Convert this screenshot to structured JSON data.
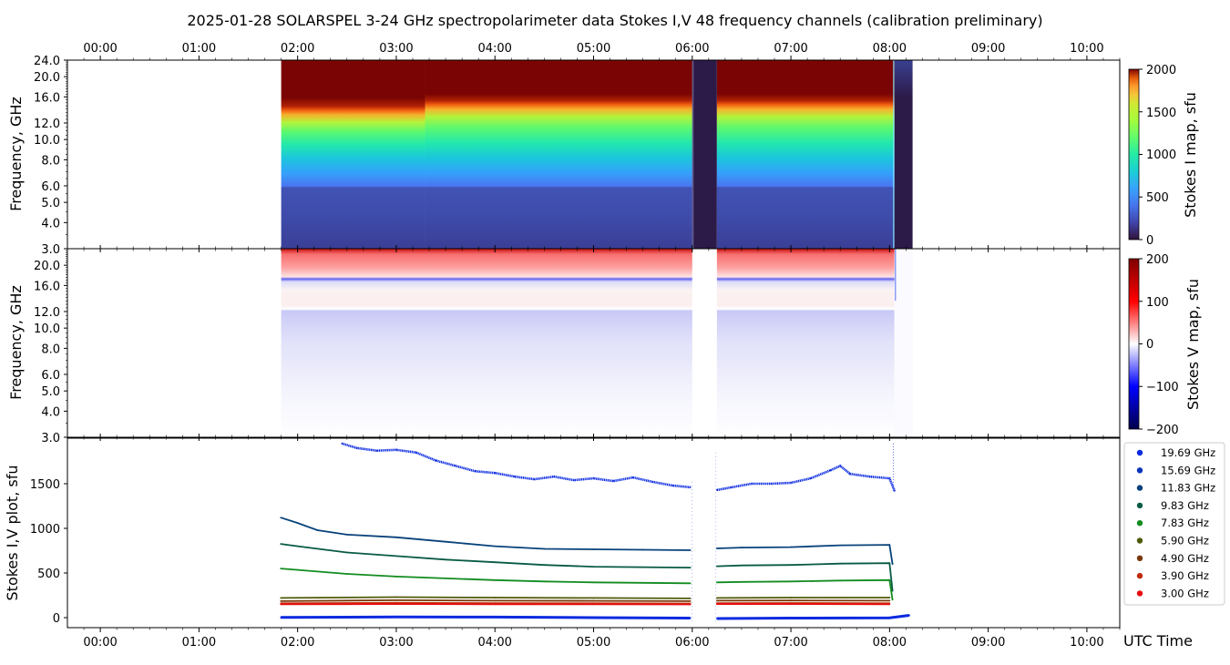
{
  "figure": {
    "title": "2025-01-28  SOLARSPEL  3-24 GHz spectropolarimeter data   Stokes I,V   48 frequency channels   (calibration preliminary)",
    "x_axis_label": "UTC Time",
    "time_ticks": [
      "00:00",
      "01:00",
      "02:00",
      "03:00",
      "04:00",
      "05:00",
      "06:00",
      "07:00",
      "08:00",
      "09:00",
      "10:00"
    ]
  },
  "panels": {
    "stokes_i": {
      "ylabel": "Frequency, GHz",
      "colorbar_label": "Stokes I map, sfu",
      "colorbar_ticks": [
        "2000",
        "1500",
        "1000",
        "500",
        "0"
      ]
    },
    "stokes_v": {
      "ylabel": "Frequency, GHz",
      "colorbar_label": "Stokes V map, sfu",
      "colorbar_ticks": [
        "200",
        "100",
        "0",
        "−100",
        "−200"
      ]
    },
    "plot": {
      "ylabel": "Stokes I,V plot, sfu"
    }
  },
  "freq_tick_labels": [
    "24.0",
    "20.0",
    "16.0",
    "12.0",
    "10.0",
    "8.0",
    "6.0",
    "5.0",
    "4.0",
    "3.0"
  ],
  "plot_tick_labels": [
    "1500",
    "1000",
    "500",
    "0"
  ],
  "chart_data": [
    {
      "type": "heatmap",
      "title": "Stokes I map",
      "x_range": [
        "23:40",
        "10:20"
      ],
      "y_range_ghz": [
        3.0,
        24.0
      ],
      "y_scale": "log",
      "color_range_sfu": [
        0,
        2000
      ],
      "colormap": "turbo",
      "observation_start": "01:50",
      "observation_end": "08:14",
      "gaps": [
        [
          "06:00",
          "06:15"
        ],
        [
          "08:03",
          "08:14"
        ]
      ],
      "saturation_level_ghz": [
        [
          "01:50",
          14.0
        ],
        [
          "03:00",
          15.0
        ],
        [
          "05:00",
          15.5
        ],
        [
          "08:00",
          16.0
        ]
      ]
    },
    {
      "type": "heatmap",
      "title": "Stokes V map",
      "x_range": [
        "23:40",
        "10:20"
      ],
      "y_range_ghz": [
        3.0,
        24.0
      ],
      "y_scale": "log",
      "color_range_sfu": [
        -200,
        200
      ],
      "colormap": "seismic",
      "positive_band_ghz": [
        19.0,
        24.0
      ],
      "negative_band_ghz": [
        10.5,
        12.5
      ]
    },
    {
      "type": "scatter",
      "title": "Stokes I,V plot",
      "ylabel": "Stokes I,V plot, sfu",
      "ylim": [
        -100,
        1950
      ],
      "x_unit": "UTC hours",
      "legend_position": "right",
      "series": [
        {
          "name": "19.69 GHz",
          "color": "#0a2ae0",
          "points": [
            [
              2.45,
              1950
            ],
            [
              2.6,
              1900
            ],
            [
              2.8,
              1870
            ],
            [
              3.0,
              1880
            ],
            [
              3.2,
              1850
            ],
            [
              3.4,
              1760
            ],
            [
              3.6,
              1700
            ],
            [
              3.8,
              1640
            ],
            [
              4.0,
              1620
            ],
            [
              4.2,
              1580
            ],
            [
              4.4,
              1550
            ],
            [
              4.6,
              1580
            ],
            [
              4.8,
              1540
            ],
            [
              5.0,
              1560
            ],
            [
              5.2,
              1530
            ],
            [
              5.4,
              1570
            ],
            [
              5.6,
              1520
            ],
            [
              5.8,
              1480
            ],
            [
              5.98,
              1460
            ],
            [
              6.25,
              1430
            ],
            [
              6.4,
              1460
            ],
            [
              6.6,
              1500
            ],
            [
              6.8,
              1500
            ],
            [
              7.0,
              1510
            ],
            [
              7.2,
              1560
            ],
            [
              7.4,
              1650
            ],
            [
              7.5,
              1700
            ],
            [
              7.6,
              1610
            ],
            [
              7.8,
              1580
            ],
            [
              8.0,
              1560
            ],
            [
              8.05,
              1420
            ]
          ]
        },
        {
          "name": "15.69 GHz",
          "color": "#0a34b8",
          "points": []
        },
        {
          "name": "11.83 GHz",
          "color": "#08427a",
          "points": [
            [
              1.83,
              1120
            ],
            [
              2.0,
              1060
            ],
            [
              2.2,
              980
            ],
            [
              2.5,
              930
            ],
            [
              3.0,
              900
            ],
            [
              3.5,
              850
            ],
            [
              4.0,
              800
            ],
            [
              4.5,
              770
            ],
            [
              5.0,
              765
            ],
            [
              5.5,
              760
            ],
            [
              5.98,
              755
            ],
            [
              6.25,
              775
            ],
            [
              6.5,
              785
            ],
            [
              7.0,
              790
            ],
            [
              7.5,
              810
            ],
            [
              8.0,
              815
            ],
            [
              8.03,
              600
            ]
          ]
        },
        {
          "name": "9.83 GHz",
          "color": "#085a44",
          "points": [
            [
              1.83,
              825
            ],
            [
              2.0,
              800
            ],
            [
              2.5,
              730
            ],
            [
              3.0,
              690
            ],
            [
              3.5,
              650
            ],
            [
              4.0,
              620
            ],
            [
              4.5,
              590
            ],
            [
              5.0,
              570
            ],
            [
              5.5,
              565
            ],
            [
              5.98,
              560
            ],
            [
              6.25,
              575
            ],
            [
              6.5,
              585
            ],
            [
              7.0,
              590
            ],
            [
              7.5,
              605
            ],
            [
              8.0,
              610
            ],
            [
              8.03,
              300
            ]
          ]
        },
        {
          "name": "7.83 GHz",
          "color": "#128c20",
          "points": [
            [
              1.83,
              550
            ],
            [
              2.0,
              535
            ],
            [
              2.5,
              490
            ],
            [
              3.0,
              460
            ],
            [
              3.5,
              440
            ],
            [
              4.0,
              420
            ],
            [
              4.5,
              405
            ],
            [
              5.0,
              395
            ],
            [
              5.5,
              390
            ],
            [
              5.98,
              385
            ],
            [
              6.25,
              395
            ],
            [
              6.5,
              400
            ],
            [
              7.0,
              405
            ],
            [
              7.5,
              415
            ],
            [
              8.0,
              420
            ],
            [
              8.03,
              200
            ]
          ]
        },
        {
          "name": "5.90 GHz",
          "color": "#4f5a08",
          "points": [
            [
              1.83,
              220
            ],
            [
              3.0,
              230
            ],
            [
              4.0,
              225
            ],
            [
              5.0,
              220
            ],
            [
              5.98,
              215
            ],
            [
              6.25,
              220
            ],
            [
              7.0,
              225
            ],
            [
              8.0,
              225
            ]
          ]
        },
        {
          "name": "4.90 GHz",
          "color": "#7a3808",
          "points": [
            [
              1.83,
              185
            ],
            [
              3.0,
              195
            ],
            [
              4.0,
              190
            ],
            [
              5.0,
              188
            ],
            [
              5.98,
              185
            ],
            [
              6.25,
              190
            ],
            [
              7.0,
              192
            ],
            [
              8.0,
              190
            ]
          ]
        },
        {
          "name": "3.90 GHz",
          "color": "#c02a08",
          "points": [
            [
              1.83,
              160
            ],
            [
              3.0,
              165
            ],
            [
              4.0,
              162
            ],
            [
              5.0,
              160
            ],
            [
              5.98,
              158
            ],
            [
              6.25,
              162
            ],
            [
              7.0,
              163
            ],
            [
              8.0,
              160
            ]
          ]
        },
        {
          "name": "3.00 GHz",
          "color": "#e80c0c",
          "points": [
            [
              1.83,
              150
            ],
            [
              3.0,
              152
            ],
            [
              4.0,
              150
            ],
            [
              5.0,
              150
            ],
            [
              5.98,
              148
            ],
            [
              6.25,
              152
            ],
            [
              7.0,
              152
            ],
            [
              8.0,
              150
            ]
          ]
        },
        {
          "name": "Stokes V",
          "color": "#0a2ae0",
          "points": [
            [
              1.83,
              2
            ],
            [
              3.0,
              8
            ],
            [
              4.0,
              6
            ],
            [
              5.0,
              0
            ],
            [
              5.98,
              -5
            ],
            [
              6.25,
              -10
            ],
            [
              7.0,
              -5
            ],
            [
              8.0,
              -2
            ],
            [
              8.2,
              25
            ]
          ]
        }
      ]
    }
  ]
}
